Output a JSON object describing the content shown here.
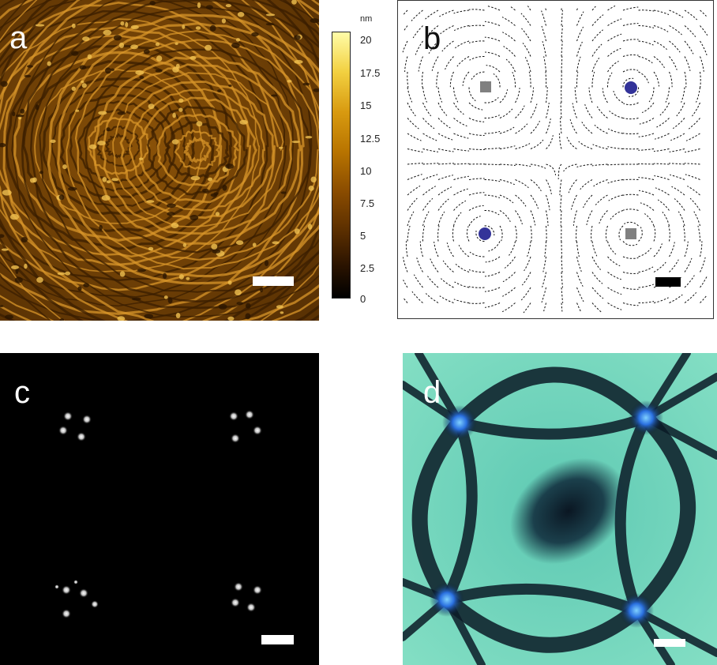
{
  "panels": {
    "a": {
      "label": "a"
    },
    "b": {
      "label": "b"
    },
    "c": {
      "label": "c"
    },
    "d": {
      "label": "d"
    }
  },
  "colorbar": {
    "unit": "nm",
    "ticks": [
      "20",
      "17.5",
      "15",
      "12.5",
      "10",
      "7.5",
      "5",
      "2.5",
      "0"
    ]
  },
  "colors": {
    "afm_dark": "#3a1e00",
    "afm_bright": "#ffe27a",
    "defect_plus": "#333399",
    "defect_minus": "#808080",
    "pom_bright": "#7fe0c8",
    "pom_dark": "#0a1a2a",
    "pom_core": "#2a80ff"
  }
}
